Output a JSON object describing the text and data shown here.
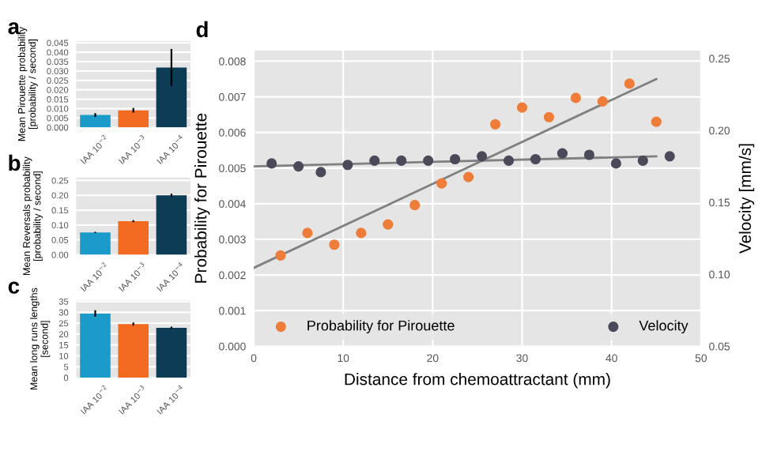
{
  "chart_data": [
    {
      "type": "bar",
      "title": "a",
      "ylabel": "Mean Pirouette probability\n[probability / second]",
      "categories": [
        "IAA 10$^{−2}$",
        "IAA 10$^{−3}$",
        "IAA 10$^{−4}$"
      ],
      "values": [
        0.0066,
        0.0091,
        0.0319
      ],
      "colors": [
        "#1b9bc9",
        "#f26b21",
        "#0d3d56"
      ],
      "errors": [
        0.001,
        0.0012,
        0.0098
      ],
      "ylim": [
        0,
        0.046
      ],
      "yticks": [
        {
          "value": 0,
          "label": "0.000"
        },
        {
          "value": 0.005,
          "label": "0.005"
        },
        {
          "value": 0.01,
          "label": "0.010"
        },
        {
          "value": 0.015,
          "label": "0.015"
        },
        {
          "value": 0.02,
          "label": "0.020"
        },
        {
          "value": 0.025,
          "label": "0.025"
        },
        {
          "value": 0.03,
          "label": "0.030"
        },
        {
          "value": 0.035,
          "label": "0.035"
        },
        {
          "value": 0.04,
          "label": "0.040"
        },
        {
          "value": 0.045,
          "label": "0.045"
        }
      ],
      "grid": "y"
    },
    {
      "type": "bar",
      "title": "b",
      "ylabel": "Mean Reversals probability\n[probability / second]",
      "categories": [
        "IAA 10$^{−2}$",
        "IAA 10$^{−3}$",
        "IAA 10$^{−4}$"
      ],
      "values": [
        0.075,
        0.113,
        0.2
      ],
      "colors": [
        "#1b9bc9",
        "#f26b21",
        "#0d3d56"
      ],
      "errors": [
        0.002,
        0.003,
        0.005
      ],
      "ylim": [
        0,
        0.26
      ],
      "yticks": [
        {
          "value": 0,
          "label": "0.00"
        },
        {
          "value": 0.05,
          "label": "0.05"
        },
        {
          "value": 0.1,
          "label": "0.10"
        },
        {
          "value": 0.15,
          "label": "0.15"
        },
        {
          "value": 0.2,
          "label": "0.20"
        },
        {
          "value": 0.25,
          "label": "0.25"
        }
      ],
      "grid": "y"
    },
    {
      "type": "bar",
      "title": "c",
      "ylabel": "Mean long runs lengths\n[second]",
      "categories": [
        "IAA 10$^{−2}$",
        "IAA 10$^{−3}$",
        "IAA 10$^{−4}$"
      ],
      "values": [
        29.4,
        24.6,
        22.9
      ],
      "colors": [
        "#1b9bc9",
        "#f26b21",
        "#0d3d56"
      ],
      "errors": [
        1.5,
        0.7,
        0.5
      ],
      "ylim": [
        0,
        35.5
      ],
      "yticks": [
        0,
        5,
        10,
        15,
        20,
        25,
        30,
        35
      ],
      "grid": "y"
    },
    {
      "type": "scatter",
      "title": "d",
      "xlabel": "Distance from chemoattractant (mm)",
      "ylabel": "Probability for Pirouette",
      "y2label": "Velocity [mm/s]",
      "legend": "bottom",
      "grid": true,
      "marker": "circle",
      "series": [
        {
          "name": "Probability for Pirouette",
          "color": "#ee7d3a",
          "x": [
            3,
            6,
            9,
            12,
            15,
            18,
            21,
            24,
            27,
            30,
            33,
            36,
            39,
            42,
            45
          ],
          "values": [
            0.00255,
            0.00318,
            0.00285,
            0.00318,
            0.00342,
            0.00396,
            0.00457,
            0.00475,
            0.00623,
            0.0067,
            0.00643,
            0.00697,
            0.00687,
            0.00737,
            0.0063
          ]
        },
        {
          "name": "Velocity",
          "color": "#4a4a5a",
          "axis": "y2",
          "x": [
            2,
            5,
            7.5,
            10.5,
            13.5,
            16.5,
            19.5,
            22.5,
            25.5,
            28.5,
            31.5,
            34.5,
            37.5,
            40.5,
            43.5,
            46.5
          ],
          "values": [
            0.177,
            0.175,
            0.171,
            0.176,
            0.179,
            0.179,
            0.179,
            0.18,
            0.182,
            0.179,
            0.18,
            0.184,
            0.183,
            0.177,
            0.179,
            0.182
          ]
        },
        {
          "type": "line",
          "marker": "none",
          "color": "#808080",
          "x": [
            0,
            45
          ],
          "values": [
            0.0022,
            0.0075
          ]
        },
        {
          "type": "line",
          "marker": "none",
          "color": "#808080",
          "axis": "y2",
          "x": [
            0,
            45
          ],
          "values": [
            0.175,
            0.182
          ]
        }
      ],
      "xlim": [
        0,
        50
      ],
      "xticks": [
        0,
        10,
        20,
        30,
        40,
        50
      ],
      "ylim": [
        0,
        0.0083
      ],
      "yticks": [
        {
          "value": 0,
          "label": "0.000"
        },
        {
          "value": 0.001,
          "label": "0.001"
        },
        {
          "value": 0.002,
          "label": "0.002"
        },
        {
          "value": 0.003,
          "label": "0.003"
        },
        {
          "value": 0.004,
          "label": "0.004"
        },
        {
          "value": 0.005,
          "label": "0.005"
        },
        {
          "value": 0.006,
          "label": "0.006"
        },
        {
          "value": 0.007,
          "label": "0.007"
        },
        {
          "value": 0.008,
          "label": "0.008"
        }
      ],
      "y2lim": [
        0.05,
        0.2555
      ],
      "y2ticks": [
        {
          "value": 0.05,
          "label": "0.05"
        },
        {
          "value": 0.1,
          "label": "0.10"
        },
        {
          "value": 0.15,
          "label": "0.15"
        },
        {
          "value": 0.2,
          "label": "0.20"
        },
        {
          "value": 0.25,
          "label": "0.25"
        }
      ]
    }
  ]
}
